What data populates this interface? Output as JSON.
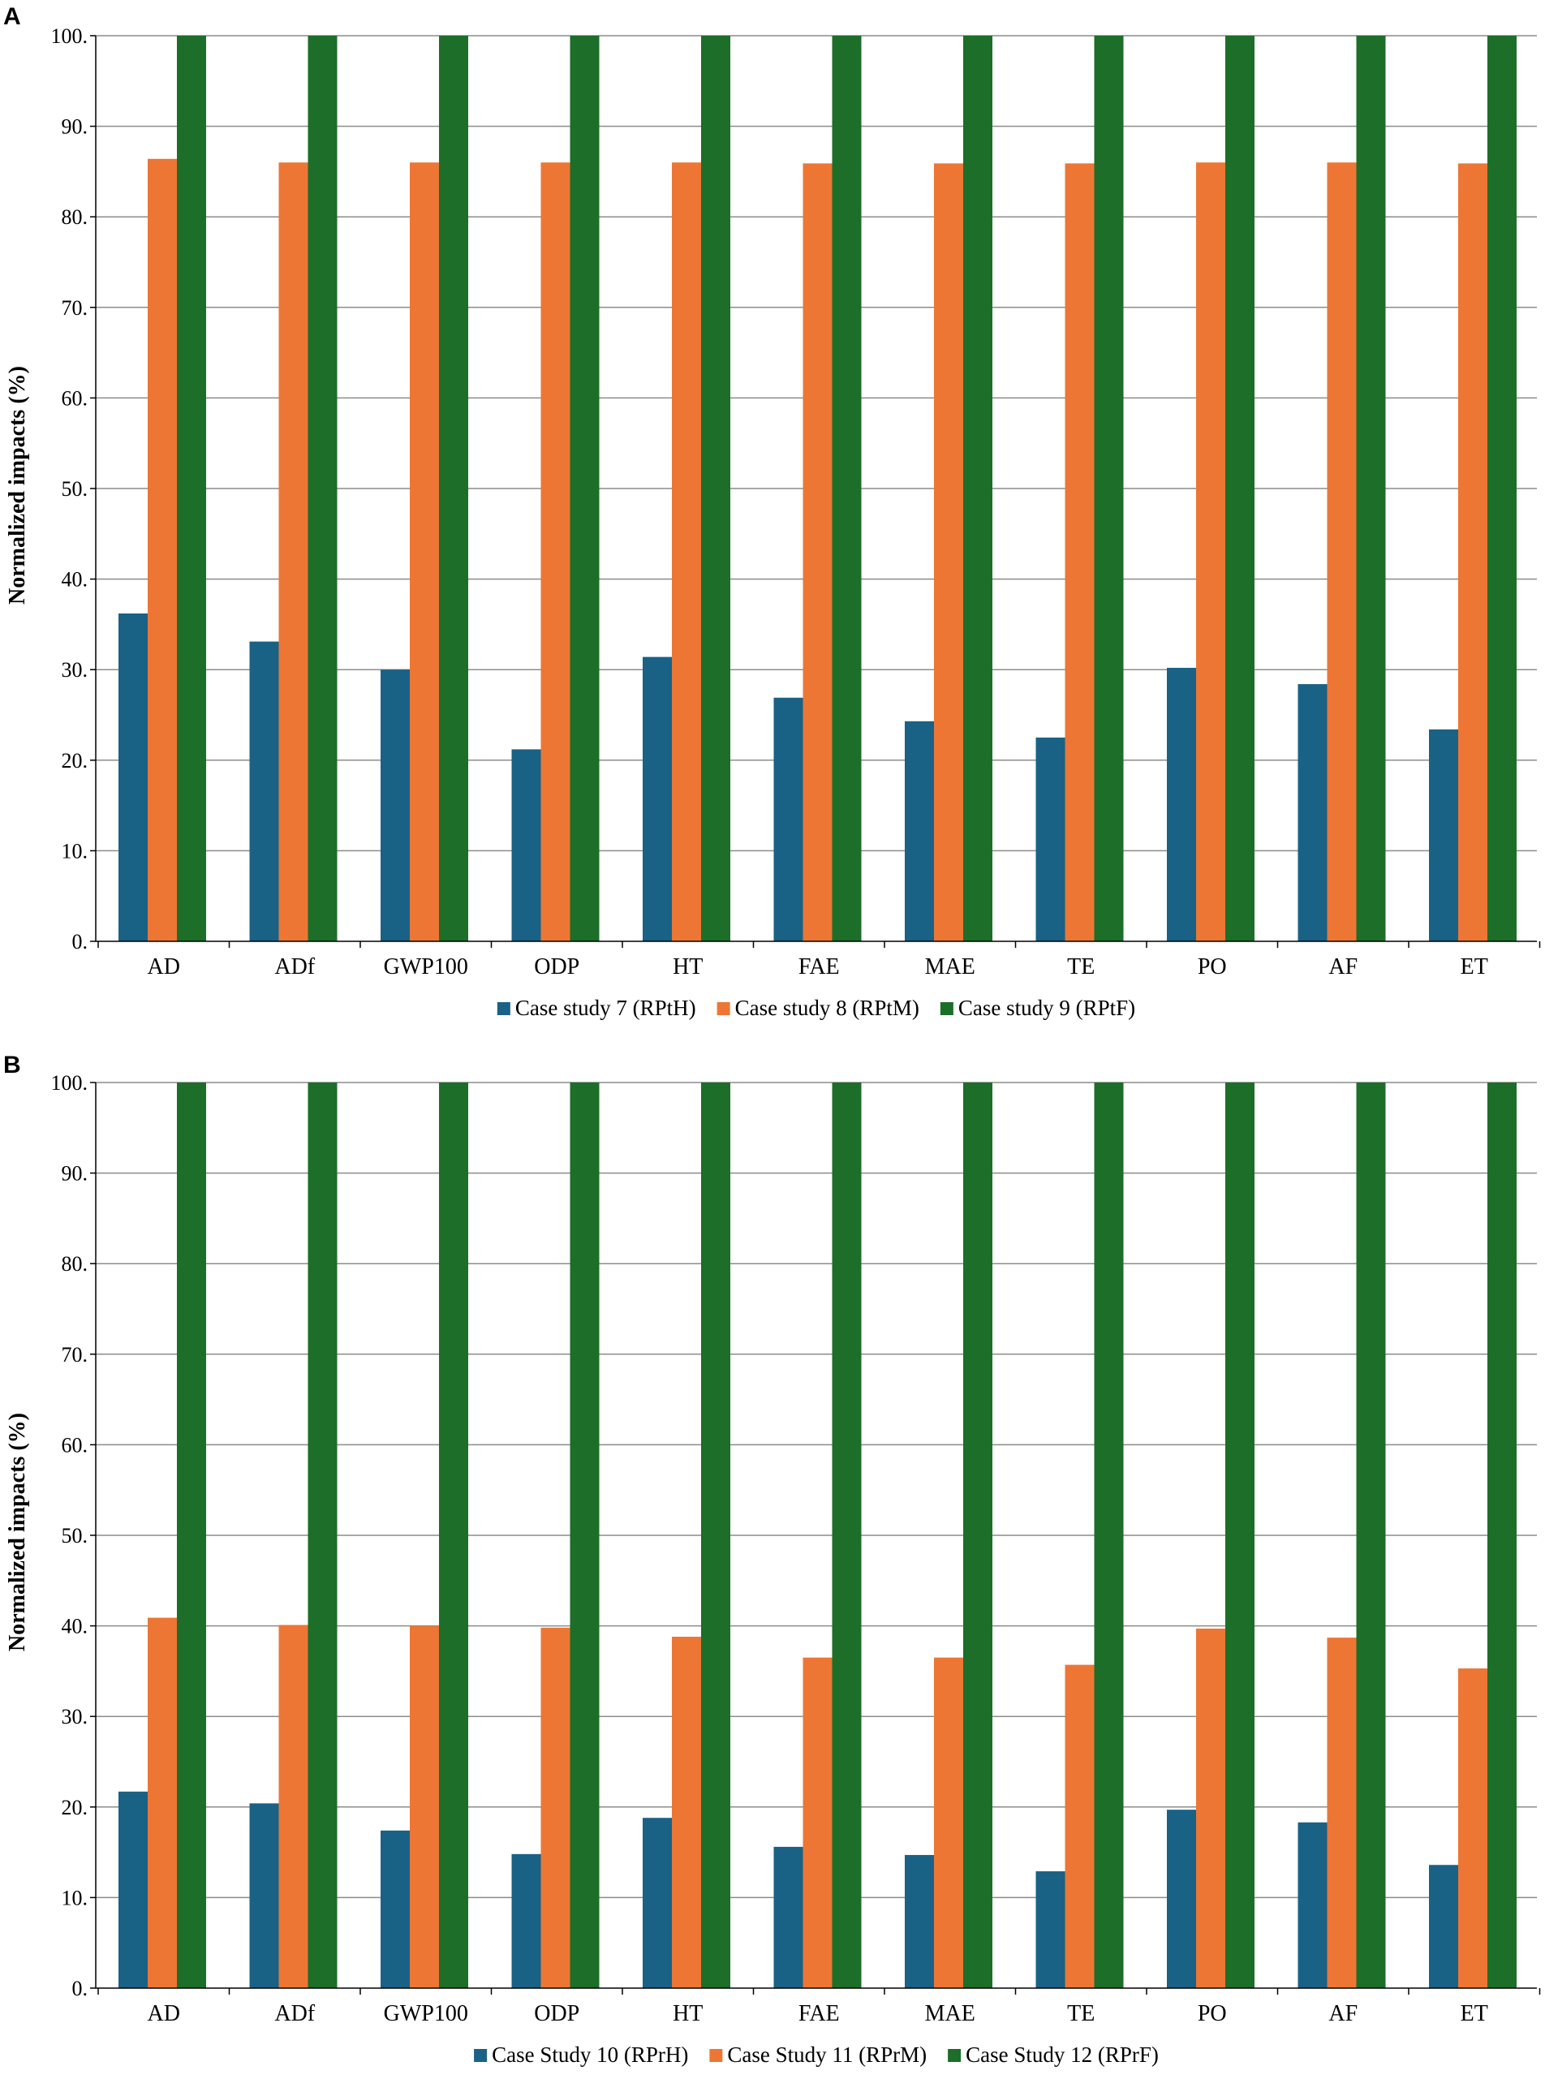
{
  "chart_data": [
    {
      "type": "bar",
      "panel": "A",
      "ylabel": "Normalized impacts (%)",
      "xlabel": "",
      "ylim": [
        0,
        100
      ],
      "yticks": [
        "0.",
        "10.",
        "20.",
        "30.",
        "40.",
        "50.",
        "60.",
        "70.",
        "80.",
        "90.",
        "100."
      ],
      "grid": true,
      "legend_position": "bottom",
      "categories": [
        "AD",
        "ADf",
        "GWP100",
        "ODP",
        "HT",
        "FAE",
        "MAE",
        "TE",
        "PO",
        "AF",
        "ET"
      ],
      "series": [
        {
          "name": "Case study 7 (RPtH)",
          "color": "#1a6186",
          "values": [
            36.2,
            33.1,
            30.0,
            21.2,
            31.4,
            26.9,
            24.3,
            22.5,
            30.2,
            28.4,
            23.4
          ]
        },
        {
          "name": "Case study 8 (RPtM)",
          "color": "#ed7634",
          "values": [
            86.4,
            86.0,
            86.0,
            86.0,
            86.0,
            85.9,
            85.9,
            85.9,
            86.0,
            86.0,
            85.9
          ]
        },
        {
          "name": "Case study 9 (RPtF)",
          "color": "#1c6e28",
          "values": [
            100,
            100,
            100,
            100,
            100,
            100,
            100,
            100,
            100,
            100,
            100
          ]
        }
      ]
    },
    {
      "type": "bar",
      "panel": "B",
      "ylabel": "Normalized impacts (%)",
      "xlabel": "",
      "ylim": [
        0,
        100
      ],
      "yticks": [
        "0.",
        "10.",
        "20.",
        "30.",
        "40.",
        "50.",
        "60.",
        "70.",
        "80.",
        "90.",
        "100."
      ],
      "grid": true,
      "legend_position": "bottom",
      "categories": [
        "AD",
        "ADf",
        "GWP100",
        "ODP",
        "HT",
        "FAE",
        "MAE",
        "TE",
        "PO",
        "AF",
        "ET"
      ],
      "series": [
        {
          "name": "Case Study 10 (RPrH)",
          "color": "#1a6186",
          "values": [
            21.7,
            20.4,
            17.4,
            14.8,
            18.8,
            15.6,
            14.7,
            12.9,
            19.7,
            18.3,
            13.6
          ]
        },
        {
          "name": "Case Study 11 (RPrM)",
          "color": "#ed7634",
          "values": [
            40.9,
            40.1,
            40.0,
            39.8,
            38.8,
            36.5,
            36.5,
            35.7,
            39.7,
            38.7,
            35.3
          ]
        },
        {
          "name": "Case Study 12 (RPrF)",
          "color": "#1c6e28",
          "values": [
            100,
            100,
            100,
            100,
            100,
            100,
            100,
            100,
            100,
            100,
            100
          ]
        }
      ]
    }
  ]
}
